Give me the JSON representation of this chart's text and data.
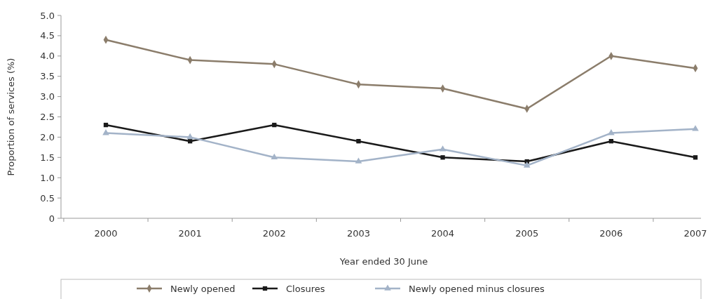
{
  "chart_data": {
    "type": "line",
    "xlabel": "Year ended 30 June",
    "ylabel": "Proportion of services (%)",
    "categories": [
      "2000",
      "2001",
      "2002",
      "2003",
      "2004",
      "2005",
      "2006",
      "2007"
    ],
    "series": [
      {
        "name": "Newly opened",
        "color": "#8b7d6b",
        "marker": "diamond",
        "values": [
          4.4,
          3.9,
          3.8,
          3.3,
          3.2,
          2.7,
          4.0,
          3.7
        ]
      },
      {
        "name": "Closures",
        "color": "#1a1a1a",
        "marker": "square",
        "values": [
          2.3,
          1.9,
          2.3,
          1.9,
          1.5,
          1.4,
          1.9,
          1.5
        ]
      },
      {
        "name": "Newly opened minus closures",
        "color": "#a3b3c8",
        "marker": "triangle",
        "values": [
          2.1,
          2.0,
          1.5,
          1.4,
          1.7,
          1.3,
          2.1,
          2.2
        ]
      }
    ],
    "ylim": [
      0,
      5
    ],
    "yticks": [
      0,
      {
        "value": 0.5,
        "label": "0.5"
      },
      {
        "value": 1,
        "label": "1.0"
      },
      {
        "value": 1.5,
        "label": "1.5"
      },
      {
        "value": 2,
        "label": "2.0"
      },
      {
        "value": 2.5,
        "label": "2.5"
      },
      {
        "value": 3,
        "label": "3.0"
      },
      {
        "value": 3.5,
        "label": "3.5"
      },
      {
        "value": 4,
        "label": "4.0"
      },
      {
        "value": 4.5,
        "label": "4.5"
      },
      {
        "value": 5,
        "label": "5.0"
      }
    ],
    "legend": "bottom",
    "line_style": "solid"
  }
}
